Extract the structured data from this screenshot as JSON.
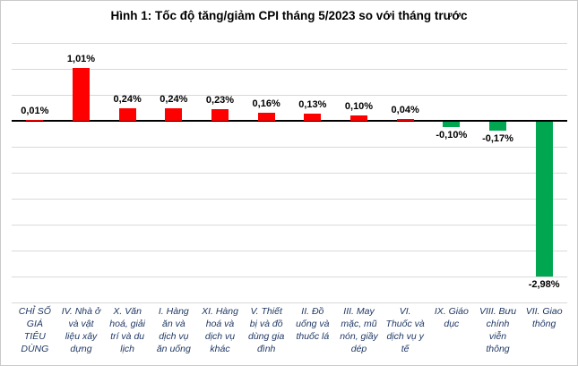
{
  "chart_data": {
    "type": "bar",
    "title": "Hình 1: Tốc độ tăng/giảm CPI tháng 5/2023 so với tháng trước",
    "categories": [
      "CHỈ SỐ GIÁ TIÊU DÙNG",
      "IV. Nhà ở và vật liệu xây dựng",
      "X. Văn hoá, giải trí và du lịch",
      "I. Hàng ăn và dịch vụ ăn uống",
      "XI. Hàng hoá và dịch vụ khác",
      "V. Thiết bị và đồ dùng gia đình",
      "II. Đồ uống và thuốc lá",
      "III. May mặc, mũ nón, giầy dép",
      "VI. Thuốc và dịch vụ y tế",
      "IX. Giáo dục",
      "VIII. Bưu chính viễn thông",
      "VII. Giao thông"
    ],
    "category_labels_wrapped": [
      "CHỈ SỐ\nGIÁ\nTIÊU\nDÙNG",
      "IV. Nhà ở\nvà vật\nliệu xây\ndựng",
      "X. Văn\nhoá, giải\ntrí và du\nlịch",
      "I. Hàng\năn và\ndịch vụ\năn uống",
      "XI. Hàng\nhoá và\ndịch vụ\nkhác",
      "V. Thiết\nbị và đồ\ndùng gia\nđình",
      "II. Đồ\nuống và\nthuốc lá",
      "III. May\nmặc, mũ\nnón, giầy\ndép",
      "VI.\nThuốc và\ndịch vụ y\ntế",
      "IX. Giáo\ndục",
      "VIII. Bưu\nchính\nviễn\nthông",
      "VII. Giao\nthông"
    ],
    "values": [
      0.01,
      1.01,
      0.24,
      0.24,
      0.23,
      0.16,
      0.13,
      0.1,
      0.04,
      -0.1,
      -0.17,
      -2.98
    ],
    "data_labels": [
      "0,01%",
      "1,01%",
      "0,24%",
      "0,24%",
      "0,23%",
      "0,16%",
      "0,13%",
      "0,10%",
      "0,04%",
      "-0,10%",
      "-0,17%",
      "-2,98%"
    ],
    "ylim": [
      -3.5,
      1.5
    ],
    "gridline_step": 0.5,
    "grid": true,
    "legend": "none",
    "positive_color": "#ff0000",
    "negative_color": "#00a650",
    "gridline_color": "#d9d9d9",
    "axis_line_color": "#000000",
    "category_label_color": "#1f3864"
  }
}
